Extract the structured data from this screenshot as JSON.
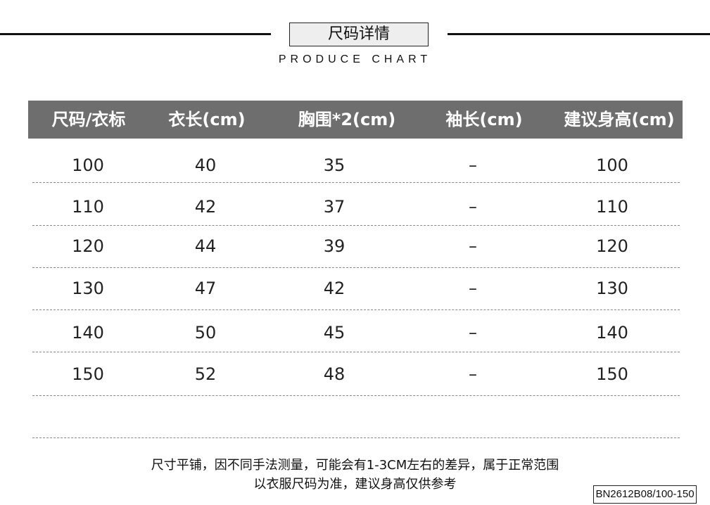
{
  "header": {
    "title": "尺码详情",
    "subtitle": "PRODUCE CHART"
  },
  "table": {
    "columns": [
      "尺码/衣标",
      "衣长(cm)",
      "胸围*2(cm)",
      "袖长(cm)",
      "建议身高(cm)"
    ],
    "rows": [
      [
        "100",
        "40",
        "35",
        "–",
        "100"
      ],
      [
        "110",
        "42",
        "37",
        "–",
        "110"
      ],
      [
        "120",
        "44",
        "39",
        "–",
        "120"
      ],
      [
        "130",
        "47",
        "42",
        "–",
        "130"
      ],
      [
        "140",
        "50",
        "45",
        "–",
        "140"
      ],
      [
        "150",
        "52",
        "48",
        "–",
        "150"
      ]
    ]
  },
  "notes": [
    "尺寸平铺，因不同手法测量，可能会有1-3CM左右的差异，属于正常范围",
    "以衣服尺码为准，建议身高仅供参考"
  ],
  "product_code": "BN2612B08/100-150",
  "colors": {
    "header_bar": "#6e6e6e",
    "title_box": "#eeeeee"
  }
}
